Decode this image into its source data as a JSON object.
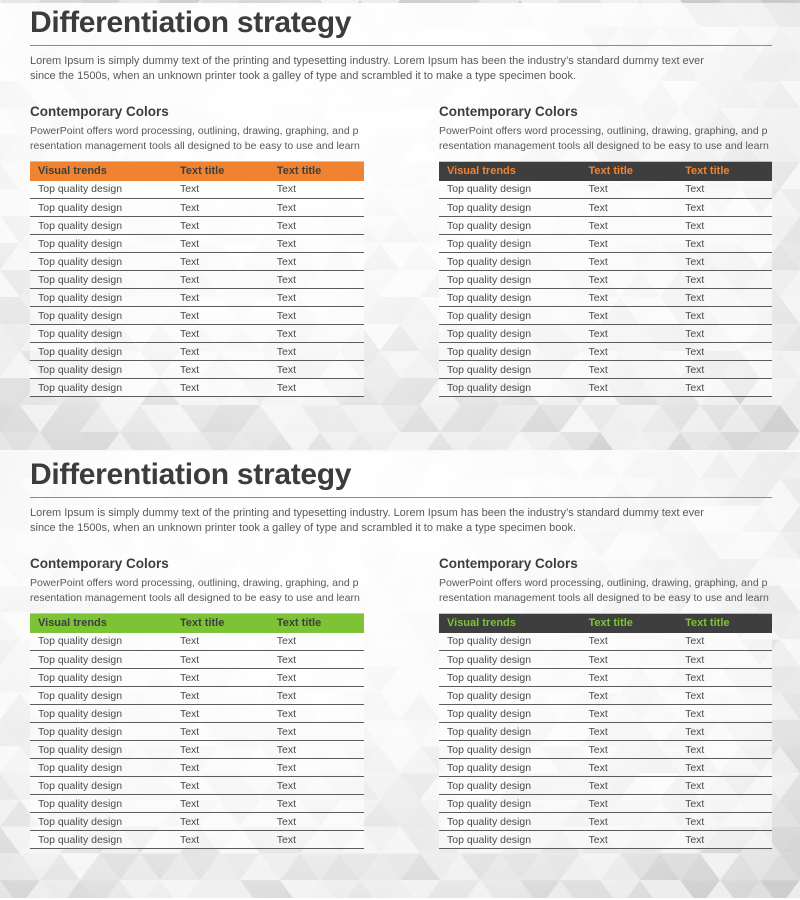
{
  "colors": {
    "orange_accent": "#EF8332",
    "green_accent": "#7CC436",
    "dark_header": "#3E3E3E"
  },
  "slides": [
    {
      "title": "Differentiation strategy",
      "intro_lines": [
        "Lorem Ipsum is simply dummy text of the printing and typesetting industry. Lorem Ipsum has been the industry’s standard dummy text ever",
        "since the 1500s, when an unknown printer took a galley of type and scrambled it to make a type specimen book."
      ],
      "columns": [
        {
          "heading": "Contemporary Colors",
          "desc_lines": [
            "PowerPoint offers word processing, outlining, drawing, graphing, and p",
            "resentation management tools all designed to be easy to use and learn"
          ],
          "table": {
            "header_bg": "#EF8332",
            "header_text": "#3E3E3E",
            "header": [
              "Visual trends",
              "Text title",
              "Text title"
            ],
            "rows": [
              [
                "Top quality design",
                "Text",
                "Text"
              ],
              [
                "Top quality design",
                "Text",
                "Text"
              ],
              [
                "Top quality design",
                "Text",
                "Text"
              ],
              [
                "Top quality design",
                "Text",
                "Text"
              ],
              [
                "Top quality design",
                "Text",
                "Text"
              ],
              [
                "Top quality design",
                "Text",
                "Text"
              ],
              [
                "Top quality design",
                "Text",
                "Text"
              ],
              [
                "Top quality design",
                "Text",
                "Text"
              ],
              [
                "Top quality design",
                "Text",
                "Text"
              ],
              [
                "Top quality design",
                "Text",
                "Text"
              ],
              [
                "Top quality design",
                "Text",
                "Text"
              ],
              [
                "Top quality design",
                "Text",
                "Text"
              ]
            ]
          }
        },
        {
          "heading": "Contemporary Colors",
          "desc_lines": [
            "PowerPoint offers word processing, outlining, drawing, graphing, and p",
            "resentation management tools all designed to be easy to use and learn"
          ],
          "table": {
            "header_bg": "#3E3E3E",
            "header_text": "#EF8332",
            "header": [
              "Visual trends",
              "Text title",
              "Text title"
            ],
            "rows": [
              [
                "Top quality design",
                "Text",
                "Text"
              ],
              [
                "Top quality design",
                "Text",
                "Text"
              ],
              [
                "Top quality design",
                "Text",
                "Text"
              ],
              [
                "Top quality design",
                "Text",
                "Text"
              ],
              [
                "Top quality design",
                "Text",
                "Text"
              ],
              [
                "Top quality design",
                "Text",
                "Text"
              ],
              [
                "Top quality design",
                "Text",
                "Text"
              ],
              [
                "Top quality design",
                "Text",
                "Text"
              ],
              [
                "Top quality design",
                "Text",
                "Text"
              ],
              [
                "Top quality design",
                "Text",
                "Text"
              ],
              [
                "Top quality design",
                "Text",
                "Text"
              ],
              [
                "Top quality design",
                "Text",
                "Text"
              ]
            ]
          }
        }
      ]
    },
    {
      "title": "Differentiation strategy",
      "intro_lines": [
        "Lorem Ipsum is simply dummy text of the printing and typesetting industry. Lorem Ipsum has been the industry’s standard dummy text ever",
        "since the 1500s, when an unknown printer took a galley of type and scrambled it to make a type specimen book."
      ],
      "columns": [
        {
          "heading": "Contemporary Colors",
          "desc_lines": [
            "PowerPoint offers word processing, outlining, drawing, graphing, and p",
            "resentation management tools all designed to be easy to use and learn"
          ],
          "table": {
            "header_bg": "#7CC436",
            "header_text": "#3E3E3E",
            "header": [
              "Visual trends",
              "Text title",
              "Text title"
            ],
            "rows": [
              [
                "Top quality design",
                "Text",
                "Text"
              ],
              [
                "Top quality design",
                "Text",
                "Text"
              ],
              [
                "Top quality design",
                "Text",
                "Text"
              ],
              [
                "Top quality design",
                "Text",
                "Text"
              ],
              [
                "Top quality design",
                "Text",
                "Text"
              ],
              [
                "Top quality design",
                "Text",
                "Text"
              ],
              [
                "Top quality design",
                "Text",
                "Text"
              ],
              [
                "Top quality design",
                "Text",
                "Text"
              ],
              [
                "Top quality design",
                "Text",
                "Text"
              ],
              [
                "Top quality design",
                "Text",
                "Text"
              ],
              [
                "Top quality design",
                "Text",
                "Text"
              ],
              [
                "Top quality design",
                "Text",
                "Text"
              ]
            ]
          }
        },
        {
          "heading": "Contemporary Colors",
          "desc_lines": [
            "PowerPoint offers word processing, outlining, drawing, graphing, and p",
            "resentation management tools all designed to be easy to use and learn"
          ],
          "table": {
            "header_bg": "#3E3E3E",
            "header_text": "#7CC436",
            "header": [
              "Visual trends",
              "Text title",
              "Text title"
            ],
            "rows": [
              [
                "Top quality design",
                "Text",
                "Text"
              ],
              [
                "Top quality design",
                "Text",
                "Text"
              ],
              [
                "Top quality design",
                "Text",
                "Text"
              ],
              [
                "Top quality design",
                "Text",
                "Text"
              ],
              [
                "Top quality design",
                "Text",
                "Text"
              ],
              [
                "Top quality design",
                "Text",
                "Text"
              ],
              [
                "Top quality design",
                "Text",
                "Text"
              ],
              [
                "Top quality design",
                "Text",
                "Text"
              ],
              [
                "Top quality design",
                "Text",
                "Text"
              ],
              [
                "Top quality design",
                "Text",
                "Text"
              ],
              [
                "Top quality design",
                "Text",
                "Text"
              ],
              [
                "Top quality design",
                "Text",
                "Text"
              ]
            ]
          }
        }
      ]
    }
  ]
}
